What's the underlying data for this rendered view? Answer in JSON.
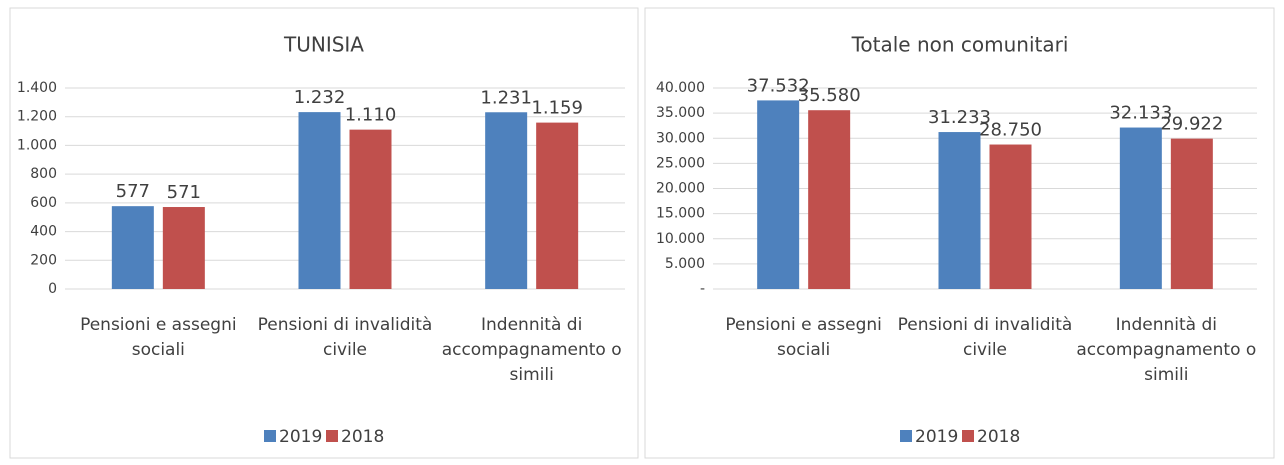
{
  "chart_data": [
    {
      "type": "bar",
      "title": "TUNISIA",
      "categories": [
        "Pensioni e assegni sociali",
        "Pensioni di invalidità civile",
        "Indennità di accompagnamento o simili"
      ],
      "series": [
        {
          "name": "2019",
          "color": "#4e81bd",
          "values": [
            577,
            1232,
            1231
          ],
          "value_labels": [
            "577",
            "1.232",
            "1.231"
          ]
        },
        {
          "name": "2018",
          "color": "#c0504d",
          "values": [
            571,
            1110,
            1159
          ],
          "value_labels": [
            "571",
            "1.110",
            "1.159"
          ]
        }
      ],
      "ylim": [
        0,
        1400
      ],
      "yticks": [
        0,
        200,
        400,
        600,
        800,
        {
          "value": 1000,
          "label": "1.000"
        },
        {
          "value": 1200,
          "label": "1.200"
        },
        {
          "value": 1400,
          "label": "1.400"
        }
      ],
      "grid": true,
      "legend": "bottom"
    },
    {
      "type": "bar",
      "title": "Totale non comunitari",
      "categories": [
        "Pensioni e assegni sociali",
        "Pensioni di invalidità civile",
        "Indennità di accompagnamento o simili"
      ],
      "series": [
        {
          "name": "2019",
          "color": "#4e81bd",
          "values": [
            37532,
            31233,
            32133
          ],
          "value_labels": [
            "37.532",
            "31.233",
            "32.133"
          ]
        },
        {
          "name": "2018",
          "color": "#c0504d",
          "values": [
            35580,
            28750,
            29922
          ],
          "value_labels": [
            "35.580",
            "28.750",
            "29.922"
          ]
        }
      ],
      "ylim": [
        0,
        40000
      ],
      "yticks": [
        {
          "value": 0,
          "label": "-"
        },
        {
          "value": 5000,
          "label": "5.000"
        },
        {
          "value": 10000,
          "label": "10.000"
        },
        {
          "value": 15000,
          "label": "15.000"
        },
        {
          "value": 20000,
          "label": "20.000"
        },
        {
          "value": 25000,
          "label": "25.000"
        },
        {
          "value": 30000,
          "label": "30.000"
        },
        {
          "value": 35000,
          "label": "35.000"
        },
        {
          "value": 40000,
          "label": "40.000"
        }
      ],
      "grid": true,
      "legend": "bottom"
    }
  ]
}
